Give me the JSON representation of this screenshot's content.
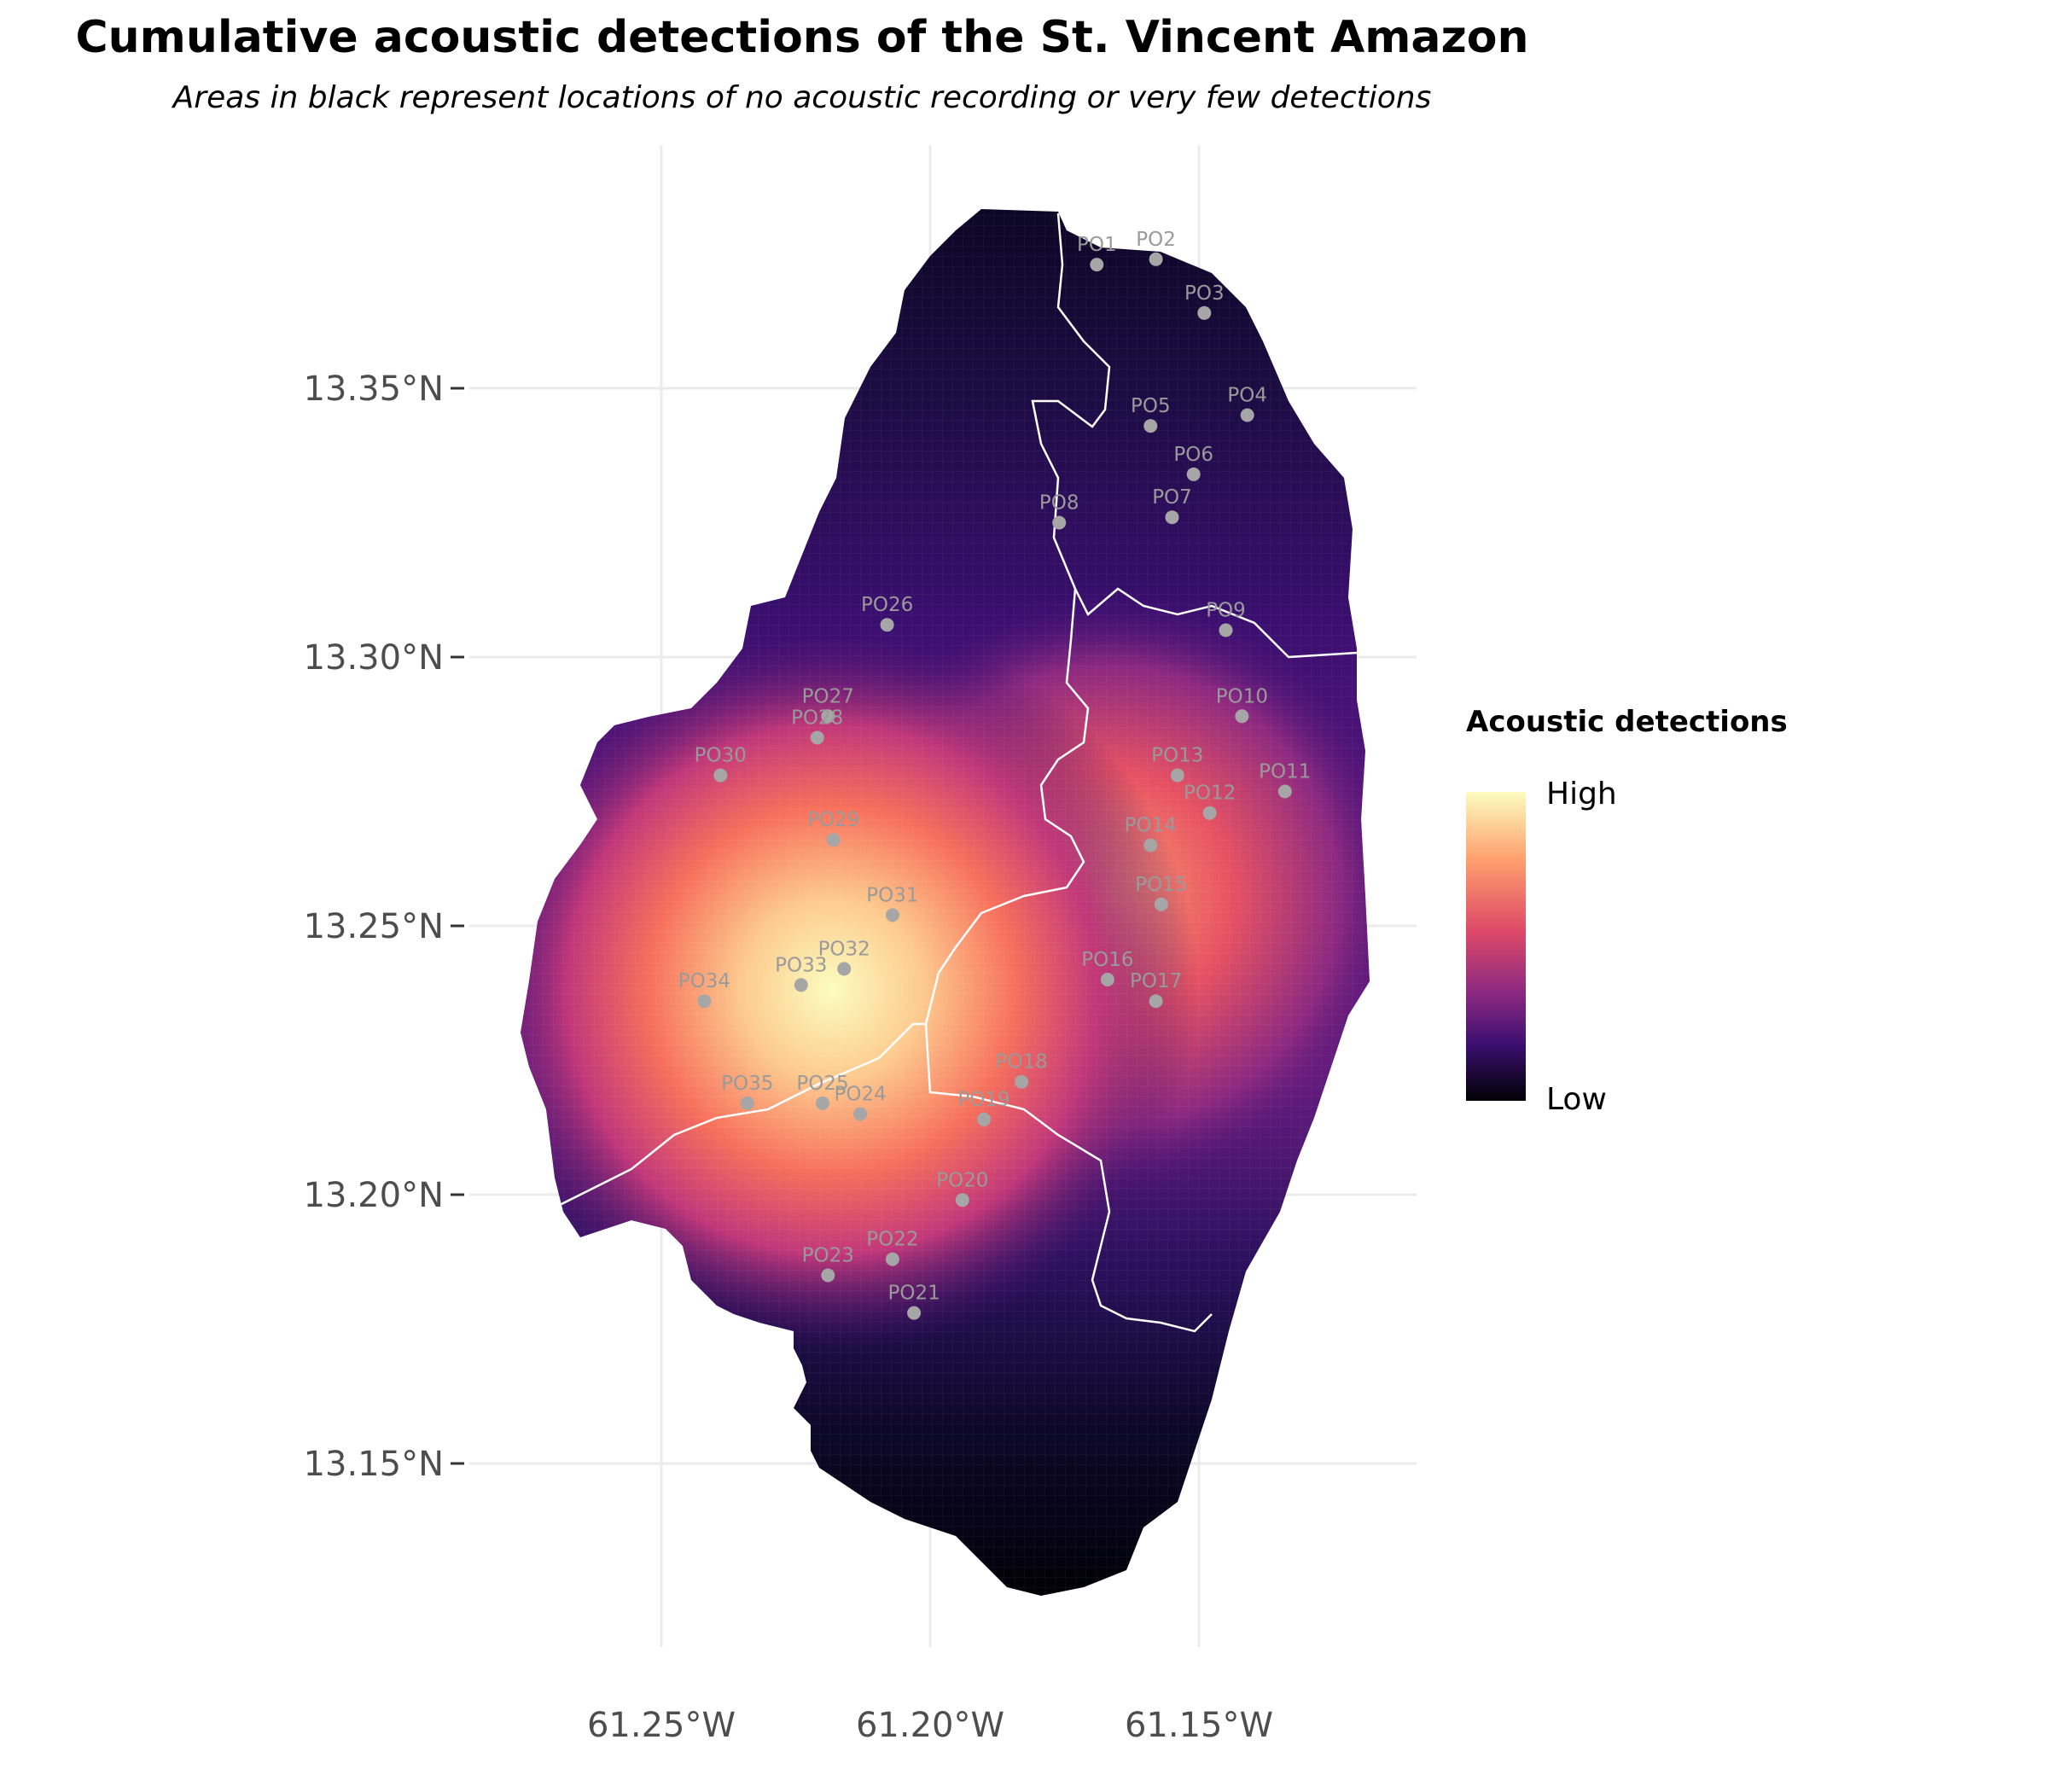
{
  "title": "Cumulative acoustic detections of the St. Vincent Amazon",
  "subtitle": "Areas in black represent locations of no acoustic recording or very few detections",
  "axes": {
    "x_ticks": [
      "61.25°W",
      "61.20°W",
      "61.15°W"
    ],
    "y_ticks": [
      "13.35°N",
      "13.30°N",
      "13.25°N",
      "13.20°N",
      "13.15°N"
    ],
    "x_range": [
      -61.3,
      -61.12
    ],
    "y_range": [
      13.12,
      13.39
    ]
  },
  "legend": {
    "title": "Acoustic detections",
    "high": "High",
    "low": "Low",
    "colors": [
      "#fcfdbf",
      "#fe9f6d",
      "#de4968",
      "#8c2981",
      "#3b0f70",
      "#000004"
    ]
  },
  "sites": [
    {
      "label": "PO1",
      "lon": -61.169,
      "lat": 13.373
    },
    {
      "label": "PO2",
      "lon": -61.158,
      "lat": 13.374
    },
    {
      "label": "PO3",
      "lon": -61.149,
      "lat": 13.364
    },
    {
      "label": "PO4",
      "lon": -61.141,
      "lat": 13.345
    },
    {
      "label": "PO5",
      "lon": -61.159,
      "lat": 13.343
    },
    {
      "label": "PO6",
      "lon": -61.151,
      "lat": 13.334
    },
    {
      "label": "PO7",
      "lon": -61.155,
      "lat": 13.326
    },
    {
      "label": "PO8",
      "lon": -61.176,
      "lat": 13.325
    },
    {
      "label": "PO9",
      "lon": -61.145,
      "lat": 13.305
    },
    {
      "label": "PO10",
      "lon": -61.142,
      "lat": 13.289
    },
    {
      "label": "PO11",
      "lon": -61.134,
      "lat": 13.275
    },
    {
      "label": "PO12",
      "lon": -61.148,
      "lat": 13.271
    },
    {
      "label": "PO13",
      "lon": -61.154,
      "lat": 13.278
    },
    {
      "label": "PO14",
      "lon": -61.159,
      "lat": 13.265
    },
    {
      "label": "PO15",
      "lon": -61.157,
      "lat": 13.254
    },
    {
      "label": "PO16",
      "lon": -61.167,
      "lat": 13.24
    },
    {
      "label": "PO17",
      "lon": -61.158,
      "lat": 13.236
    },
    {
      "label": "PO18",
      "lon": -61.183,
      "lat": 13.221
    },
    {
      "label": "PO19",
      "lon": -61.19,
      "lat": 13.214
    },
    {
      "label": "PO20",
      "lon": -61.194,
      "lat": 13.199
    },
    {
      "label": "PO21",
      "lon": -61.203,
      "lat": 13.178
    },
    {
      "label": "PO22",
      "lon": -61.207,
      "lat": 13.188
    },
    {
      "label": "PO23",
      "lon": -61.219,
      "lat": 13.185
    },
    {
      "label": "PO24",
      "lon": -61.213,
      "lat": 13.215
    },
    {
      "label": "PO25",
      "lon": -61.22,
      "lat": 13.217
    },
    {
      "label": "PO26",
      "lon": -61.208,
      "lat": 13.306
    },
    {
      "label": "PO27",
      "lon": -61.219,
      "lat": 13.289
    },
    {
      "label": "PO28",
      "lon": -61.221,
      "lat": 13.285
    },
    {
      "label": "PO29",
      "lon": -61.218,
      "lat": 13.266
    },
    {
      "label": "PO30",
      "lon": -61.239,
      "lat": 13.278
    },
    {
      "label": "PO31",
      "lon": -61.207,
      "lat": 13.252
    },
    {
      "label": "PO32",
      "lon": -61.216,
      "lat": 13.242
    },
    {
      "label": "PO33",
      "lon": -61.224,
      "lat": 13.239
    },
    {
      "label": "PO34",
      "lon": -61.242,
      "lat": 13.236
    },
    {
      "label": "PO35",
      "lon": -61.234,
      "lat": 13.217
    }
  ]
}
